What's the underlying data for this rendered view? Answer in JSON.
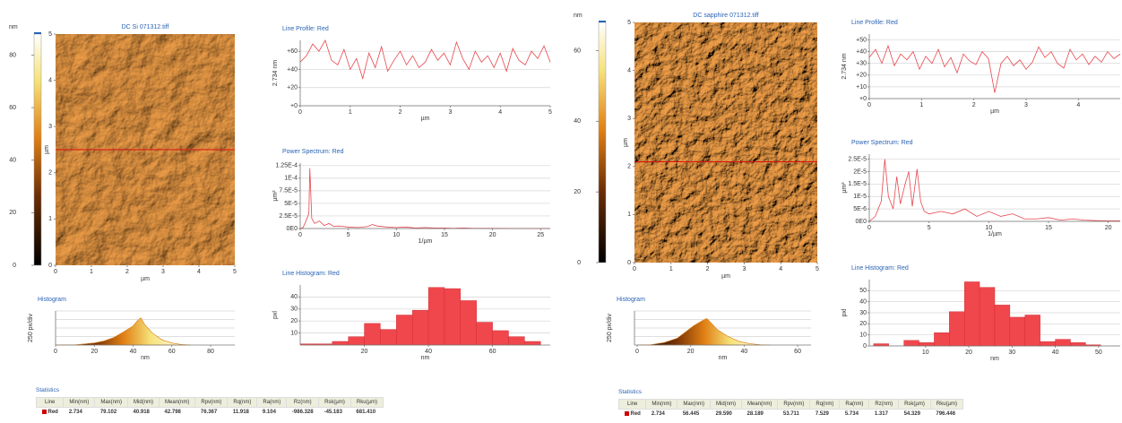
{
  "panels": [
    {
      "image": {
        "title": "DC Si 071312.tiff",
        "axis_label": "µm",
        "lim": [
          0,
          5
        ],
        "ticks": [
          0,
          1,
          2,
          3,
          4,
          5
        ],
        "colorbar_unit": "nm",
        "colorbar_lim": [
          0,
          88
        ],
        "colorbar_ticks": [
          0,
          20,
          40,
          60,
          80
        ]
      },
      "charts": [
        {
          "type": "line",
          "title": "Line Profile: Red",
          "y_label": "2.734 nm",
          "x_label": "µm",
          "color": "#e8464e",
          "grid": true,
          "x": [
            0,
            0.125,
            0.25,
            0.375,
            0.5,
            0.625,
            0.75,
            0.875,
            1,
            1.125,
            1.25,
            1.375,
            1.5,
            1.625,
            1.75,
            1.875,
            2,
            2.125,
            2.25,
            2.375,
            2.5,
            2.625,
            2.75,
            2.875,
            3,
            3.125,
            3.25,
            3.375,
            3.5,
            3.625,
            3.75,
            3.875,
            4,
            4.125,
            4.25,
            4.375,
            4.5,
            4.625,
            4.75,
            4.875,
            5
          ],
          "values": [
            48,
            55,
            68,
            60,
            72,
            50,
            45,
            62,
            40,
            52,
            30,
            58,
            42,
            65,
            38,
            50,
            60,
            45,
            55,
            42,
            48,
            62,
            50,
            58,
            45,
            70,
            52,
            40,
            60,
            48,
            55,
            42,
            58,
            38,
            63,
            50,
            45,
            60,
            52,
            66,
            48
          ],
          "xlim": [
            0,
            5
          ],
          "ylim": [
            0,
            72
          ],
          "xticks": [
            0,
            1,
            2,
            3,
            4,
            5
          ],
          "yticks": [
            {
              "value": 0,
              "label": "+0"
            },
            {
              "value": 20,
              "label": "+20"
            },
            {
              "value": 40,
              "label": "+40"
            },
            {
              "value": 60,
              "label": "+60"
            }
          ]
        },
        {
          "type": "line",
          "title": "Power Spectrum: Red",
          "y_label": "µm²",
          "x_label": "1/µm",
          "color": "#e8464e",
          "grid": true,
          "x": [
            0,
            0.3,
            0.6,
            0.9,
            1,
            1.2,
            1.5,
            2,
            2.5,
            3,
            3.5,
            4,
            5,
            6,
            7,
            7.5,
            8,
            9,
            10,
            11,
            12,
            13,
            14,
            15,
            16,
            17,
            18,
            20,
            22,
            24,
            26
          ],
          "values": [
            0,
            2e-06,
            1.5e-05,
            3e-05,
            0.00012,
            2e-05,
            1e-05,
            1.5e-05,
            6e-06,
            1e-05,
            4e-06,
            5e-06,
            3e-06,
            2e-06,
            4e-06,
            8e-06,
            5e-06,
            3e-06,
            2e-06,
            3e-06,
            1e-06,
            2e-06,
            1e-06,
            1e-06,
            5e-07,
            1e-06,
            5e-07,
            3e-07,
            2e-07,
            1e-07,
            1e-07
          ],
          "xlim": [
            0,
            26
          ],
          "ylim": [
            0,
            0.00013
          ],
          "xticks": [
            0,
            5,
            10,
            15,
            20,
            25
          ],
          "yticks": [
            {
              "value": 0,
              "label": "0E0"
            },
            {
              "value": 2.5e-05,
              "label": "2.5E-5"
            },
            {
              "value": 5e-05,
              "label": "5E-5"
            },
            {
              "value": 7.5e-05,
              "label": "7.5E-5"
            },
            {
              "value": 0.0001,
              "label": "1E-4"
            },
            {
              "value": 0.000125,
              "label": "1.25E-4"
            }
          ]
        },
        {
          "type": "histogram",
          "title": "Line Histogram: Red",
          "y_label": "pxl",
          "x_label": "nm",
          "color": "#f0474d",
          "grid": true,
          "bins": [
            0,
            5,
            10,
            15,
            20,
            25,
            30,
            35,
            40,
            45,
            50,
            55,
            60,
            65,
            70,
            75
          ],
          "values": [
            1,
            1,
            3,
            7,
            18,
            13,
            25,
            29,
            48,
            47,
            37,
            19,
            12,
            7,
            3
          ],
          "xlim": [
            0,
            78
          ],
          "ylim": [
            0,
            50
          ],
          "xticks": [
            20,
            40,
            60
          ],
          "yticks": [
            10,
            20,
            30,
            40
          ]
        },
        {
          "type": "area",
          "title": "Histogram",
          "y_label": "250 px/div",
          "x_label": "nm",
          "color": "#d9790f",
          "grid": true,
          "x": [
            0,
            10,
            20,
            25,
            30,
            35,
            40,
            42,
            44,
            46,
            50,
            55,
            60,
            65,
            70
          ],
          "values": [
            0,
            5,
            60,
            120,
            220,
            380,
            560,
            700,
            800,
            600,
            350,
            150,
            60,
            15,
            0
          ],
          "xlim": [
            0,
            92.5
          ],
          "ylim": [
            0,
            1000
          ],
          "xticks": [
            0,
            20,
            40,
            60,
            80
          ]
        }
      ],
      "statistics": {
        "title": "Statistics",
        "columns": [
          "Line",
          "Min(nm)",
          "Max(nm)",
          "Mid(nm)",
          "Mean(nm)",
          "Rpv(nm)",
          "Rq(nm)",
          "Ra(nm)",
          "Rz(nm)",
          "Rsk(µm)",
          "Rku(µm)"
        ],
        "rows": [
          [
            "Red",
            "2.734",
            "79.102",
            "40.918",
            "42.798",
            "76.367",
            "11.918",
            "9.104",
            "-986.328",
            "-45.183",
            "681.410"
          ]
        ]
      }
    },
    {
      "image": {
        "title": "DC sapphire 071312.tiff",
        "axis_label": "µm",
        "lim": [
          0,
          5
        ],
        "ticks": [
          0,
          1,
          2,
          3,
          4,
          5
        ],
        "colorbar_unit": "nm",
        "colorbar_lim": [
          0,
          68
        ],
        "colorbar_ticks": [
          0,
          20,
          40,
          60
        ]
      },
      "charts": [
        {
          "type": "line",
          "title": "Line Profile: Red",
          "y_label": "2.734 nm",
          "x_label": "µm",
          "color": "#e8464e",
          "grid": true,
          "x": [
            0,
            0.12,
            0.24,
            0.36,
            0.48,
            0.6,
            0.72,
            0.84,
            0.96,
            1.08,
            1.2,
            1.32,
            1.44,
            1.56,
            1.68,
            1.8,
            1.92,
            2.04,
            2.16,
            2.28,
            2.4,
            2.52,
            2.64,
            2.76,
            2.88,
            3,
            3.12,
            3.24,
            3.36,
            3.48,
            3.6,
            3.72,
            3.84,
            3.96,
            4.08,
            4.2,
            4.32,
            4.44,
            4.56,
            4.68,
            4.8
          ],
          "values": [
            35,
            42,
            30,
            45,
            28,
            38,
            33,
            40,
            25,
            36,
            30,
            42,
            27,
            35,
            22,
            38,
            32,
            29,
            40,
            34,
            5,
            30,
            36,
            28,
            33,
            25,
            31,
            44,
            35,
            40,
            30,
            26,
            42,
            33,
            38,
            29,
            36,
            31,
            40,
            34,
            38
          ],
          "xlim": [
            0,
            4.8
          ],
          "ylim": [
            0,
            55
          ],
          "xticks": [
            0,
            1,
            2,
            3,
            4
          ],
          "yticks": [
            {
              "value": 0,
              "label": "+0"
            },
            {
              "value": 10,
              "label": "+10"
            },
            {
              "value": 20,
              "label": "+20"
            },
            {
              "value": 30,
              "label": "+30"
            },
            {
              "value": 40,
              "label": "+40"
            },
            {
              "value": 50,
              "label": "+50"
            }
          ]
        },
        {
          "type": "line",
          "title": "Power Spectrum: Red",
          "y_label": "µm²",
          "x_label": "1/µm",
          "color": "#e8464e",
          "grid": true,
          "x": [
            0,
            0.5,
            1,
            1.3,
            1.6,
            2,
            2.3,
            2.6,
            3,
            3.3,
            3.6,
            4,
            4.3,
            4.6,
            5,
            6,
            7,
            8,
            9,
            10,
            11,
            12,
            13,
            14,
            15,
            16,
            17,
            18,
            19,
            20,
            21
          ],
          "values": [
            0,
            2e-06,
            8e-06,
            2.5e-05,
            1e-05,
            5e-06,
            1.8e-05,
            7e-06,
            1.5e-05,
            2e-05,
            6e-06,
            2.1e-05,
            8e-06,
            4e-06,
            3e-06,
            4e-06,
            3e-06,
            5e-06,
            2e-06,
            4e-06,
            2e-06,
            3e-06,
            1e-06,
            1e-06,
            1.5e-06,
            5e-07,
            1e-06,
            5e-07,
            3e-07,
            2e-07,
            2e-07
          ],
          "xlim": [
            0,
            21
          ],
          "ylim": [
            0,
            2.7e-05
          ],
          "xticks": [
            0,
            5,
            10,
            15,
            20
          ],
          "yticks": [
            {
              "value": 0,
              "label": "0E0"
            },
            {
              "value": 5e-06,
              "label": "5E-6"
            },
            {
              "value": 1e-05,
              "label": "1E-5"
            },
            {
              "value": 1.5e-05,
              "label": "1.5E-5"
            },
            {
              "value": 2e-05,
              "label": "2E-5"
            },
            {
              "value": 2.5e-05,
              "label": "2.5E-5"
            }
          ]
        },
        {
          "type": "histogram",
          "title": "Line Histogram: Red",
          "y_label": "pxl",
          "x_label": "nm",
          "color": "#f0474d",
          "grid": true,
          "bins": [
            -2,
            1.5,
            5,
            8.5,
            12,
            15.5,
            19,
            22.5,
            26,
            29.5,
            33,
            36.5,
            40,
            43.5,
            47,
            50.5
          ],
          "values": [
            2,
            0,
            5,
            3,
            12,
            31,
            58,
            53,
            37,
            26,
            28,
            4,
            6,
            3,
            1
          ],
          "xlim": [
            -3,
            55
          ],
          "ylim": [
            0,
            60
          ],
          "xticks": [
            10,
            20,
            30,
            40,
            50
          ],
          "yticks": [
            0,
            10,
            20,
            30,
            40,
            50
          ]
        },
        {
          "type": "area",
          "title": "Histogram",
          "y_label": "250 px/div",
          "x_label": "nm",
          "color": "#d9790f",
          "grid": true,
          "x": [
            0,
            5,
            10,
            15,
            18,
            21,
            24,
            26,
            28,
            30,
            34,
            38,
            42,
            46,
            50
          ],
          "values": [
            0,
            10,
            70,
            200,
            380,
            560,
            700,
            780,
            620,
            450,
            250,
            110,
            40,
            10,
            0
          ],
          "xlim": [
            -1,
            65
          ],
          "ylim": [
            0,
            1000
          ],
          "xticks": [
            0,
            20,
            40,
            60
          ]
        }
      ],
      "statistics": {
        "title": "Statistics",
        "columns": [
          "Line",
          "Min(nm)",
          "Max(nm)",
          "Mid(nm)",
          "Mean(nm)",
          "Rpv(nm)",
          "Rq(nm)",
          "Ra(nm)",
          "Rz(nm)",
          "Rsk(µm)",
          "Rku(µm)"
        ],
        "rows": [
          [
            "Red",
            "2.734",
            "56.445",
            "29.590",
            "28.189",
            "53.711",
            "7.529",
            "5.734",
            "1.317",
            "54.329",
            "796.446"
          ]
        ]
      }
    }
  ]
}
